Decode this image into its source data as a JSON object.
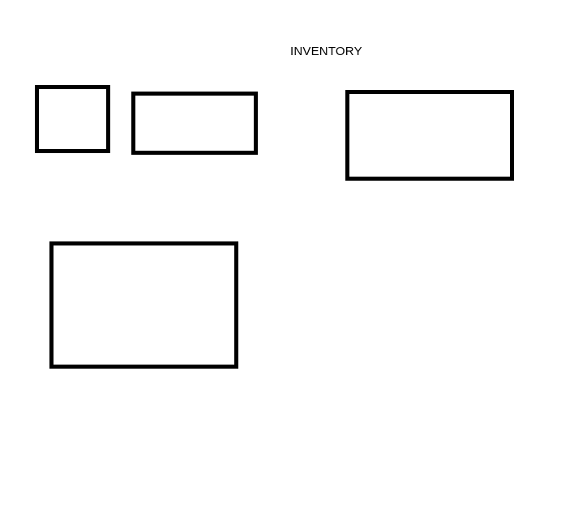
{
  "page": {
    "title": "INVENTORY",
    "background_color": "#ffffff",
    "stroke_color": "#000000"
  },
  "boxes": [
    {
      "name": "inventory-box-1"
    },
    {
      "name": "inventory-box-2"
    },
    {
      "name": "inventory-box-3"
    },
    {
      "name": "inventory-box-4"
    }
  ]
}
